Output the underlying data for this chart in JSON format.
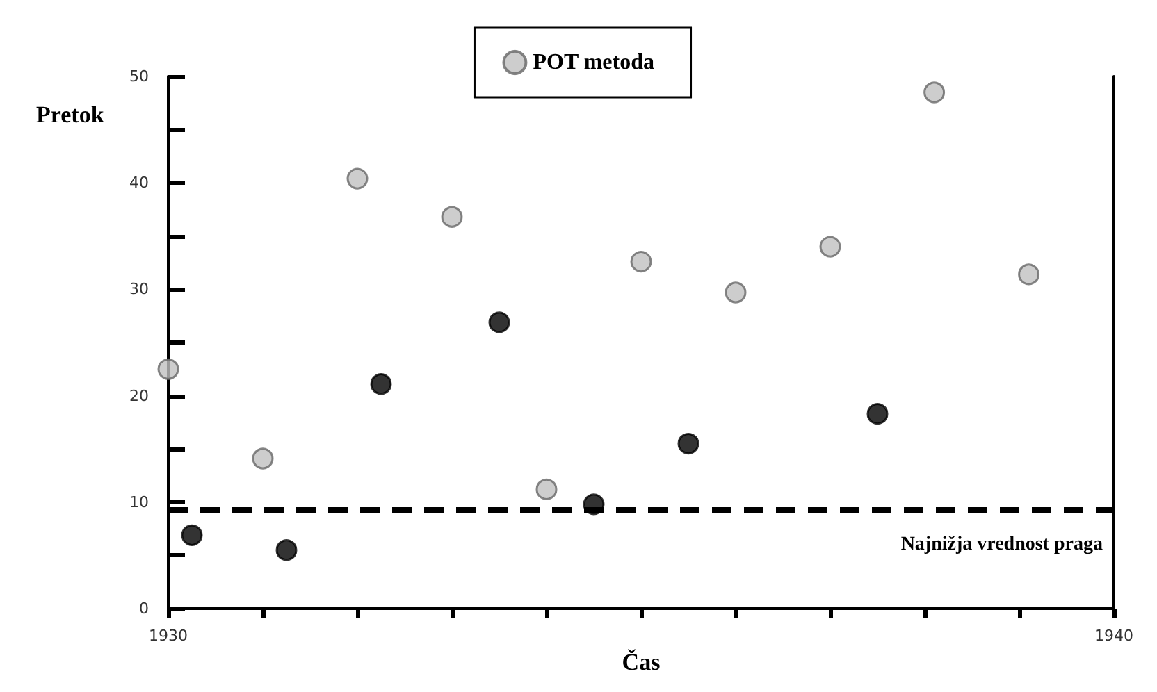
{
  "chart_data": {
    "type": "scatter",
    "xlabel": "Čas",
    "ylabel": "Pretok",
    "xlim": [
      1930,
      1940
    ],
    "ylim": [
      0,
      50
    ],
    "xticks": [
      1930,
      {
        "value": 1931,
        "label": null
      },
      {
        "value": 1932,
        "label": null
      },
      {
        "value": 1933,
        "label": null
      },
      {
        "value": 1934,
        "label": null
      },
      {
        "value": 1935,
        "label": null
      },
      {
        "value": 1936,
        "label": null
      },
      {
        "value": 1937,
        "label": null
      },
      {
        "value": 1938,
        "label": null
      },
      {
        "value": 1939,
        "label": null
      },
      1940
    ],
    "yticks": [
      0,
      {
        "value": 5,
        "label": null
      },
      10,
      {
        "value": 15,
        "label": null
      },
      20,
      {
        "value": 25,
        "label": null
      },
      30,
      {
        "value": 35,
        "label": null
      },
      40,
      {
        "value": 45,
        "label": null
      },
      50
    ],
    "series": [
      {
        "name": "POT metoda",
        "color": "#c0c0c0",
        "x": [
          1930,
          1931,
          1932,
          1933,
          1934,
          1935,
          1936,
          1937,
          1938.1,
          1939.1
        ],
        "values": [
          22.5,
          14.1,
          40.4,
          36.8,
          11.2,
          32.6,
          29.7,
          34.0,
          48.5,
          31.4
        ]
      },
      {
        "color": "#000000",
        "x": [
          1930.25,
          1931.25,
          1932.25,
          1933.5,
          1934.5,
          1935.5,
          1937.5
        ],
        "values": [
          6.9,
          5.5,
          21.1,
          26.9,
          9.8,
          15.5,
          18.3
        ]
      }
    ],
    "ref_lines": [
      {
        "axis": "y",
        "value": 9.3,
        "label": "Najnižja vrednost praga",
        "color": "#000000",
        "line_style": "dashed"
      }
    ],
    "marker": "circle",
    "grid": false,
    "legend": "top"
  }
}
